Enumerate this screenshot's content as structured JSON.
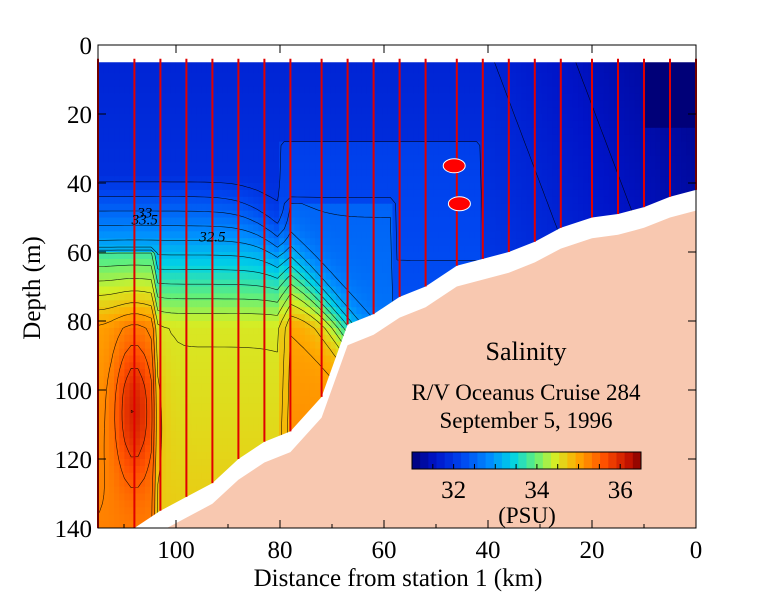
{
  "chart_data": {
    "type": "heatmap",
    "title": "Salinity",
    "subtitle_1": "R/V Oceanus Cruise 284",
    "subtitle_2": "September 5, 1996",
    "xlabel": "Distance from station 1 (km)",
    "ylabel": "Depth (m)",
    "xlim": [
      115,
      0
    ],
    "ylim": [
      0,
      140
    ],
    "x_ticks": [
      100,
      80,
      60,
      40,
      20,
      0
    ],
    "x_tick_labels": [
      "100",
      "80",
      "60",
      "40",
      "20",
      "0"
    ],
    "y_ticks": [
      0,
      20,
      40,
      60,
      80,
      100,
      120,
      140
    ],
    "y_tick_labels": [
      "0",
      "20",
      "40",
      "60",
      "80",
      "100",
      "120",
      "140"
    ],
    "colorbar": {
      "label": "(PSU)",
      "range": [
        31.0,
        36.5
      ],
      "ticks": [
        32,
        34,
        36
      ],
      "tick_labels": [
        "32",
        "34",
        "36"
      ]
    },
    "contour_labels": [
      {
        "text": "33.5",
        "x": 106,
        "y": 52
      },
      {
        "text": "33",
        "x": 106,
        "y": 50
      },
      {
        "text": "32.5",
        "x": 93,
        "y": 57
      }
    ],
    "stations": [
      {
        "x": 115,
        "bottom": 140
      },
      {
        "x": 108,
        "bottom": 140
      },
      {
        "x": 103,
        "bottom": 135
      },
      {
        "x": 98,
        "bottom": 131
      },
      {
        "x": 93,
        "bottom": 127
      },
      {
        "x": 88,
        "bottom": 120
      },
      {
        "x": 83,
        "bottom": 115
      },
      {
        "x": 78,
        "bottom": 112
      },
      {
        "x": 72,
        "bottom": 102
      },
      {
        "x": 67,
        "bottom": 81
      },
      {
        "x": 62,
        "bottom": 78
      },
      {
        "x": 57,
        "bottom": 73
      },
      {
        "x": 52,
        "bottom": 70
      },
      {
        "x": 46,
        "bottom": 64
      },
      {
        "x": 41,
        "bottom": 62
      },
      {
        "x": 36,
        "bottom": 60
      },
      {
        "x": 31,
        "bottom": 57
      },
      {
        "x": 26,
        "bottom": 53
      },
      {
        "x": 20,
        "bottom": 50
      },
      {
        "x": 15,
        "bottom": 49
      },
      {
        "x": 10,
        "bottom": 47
      },
      {
        "x": 5,
        "bottom": 44
      },
      {
        "x": 0,
        "bottom": 42
      }
    ],
    "markers": [
      {
        "x": 46.5,
        "y": 35
      },
      {
        "x": 45.5,
        "y": 46
      }
    ],
    "colors": {
      "bottom_fill": "#f8c8b0",
      "station_line": "#e00000",
      "marker_fill": "#ff0000"
    }
  }
}
